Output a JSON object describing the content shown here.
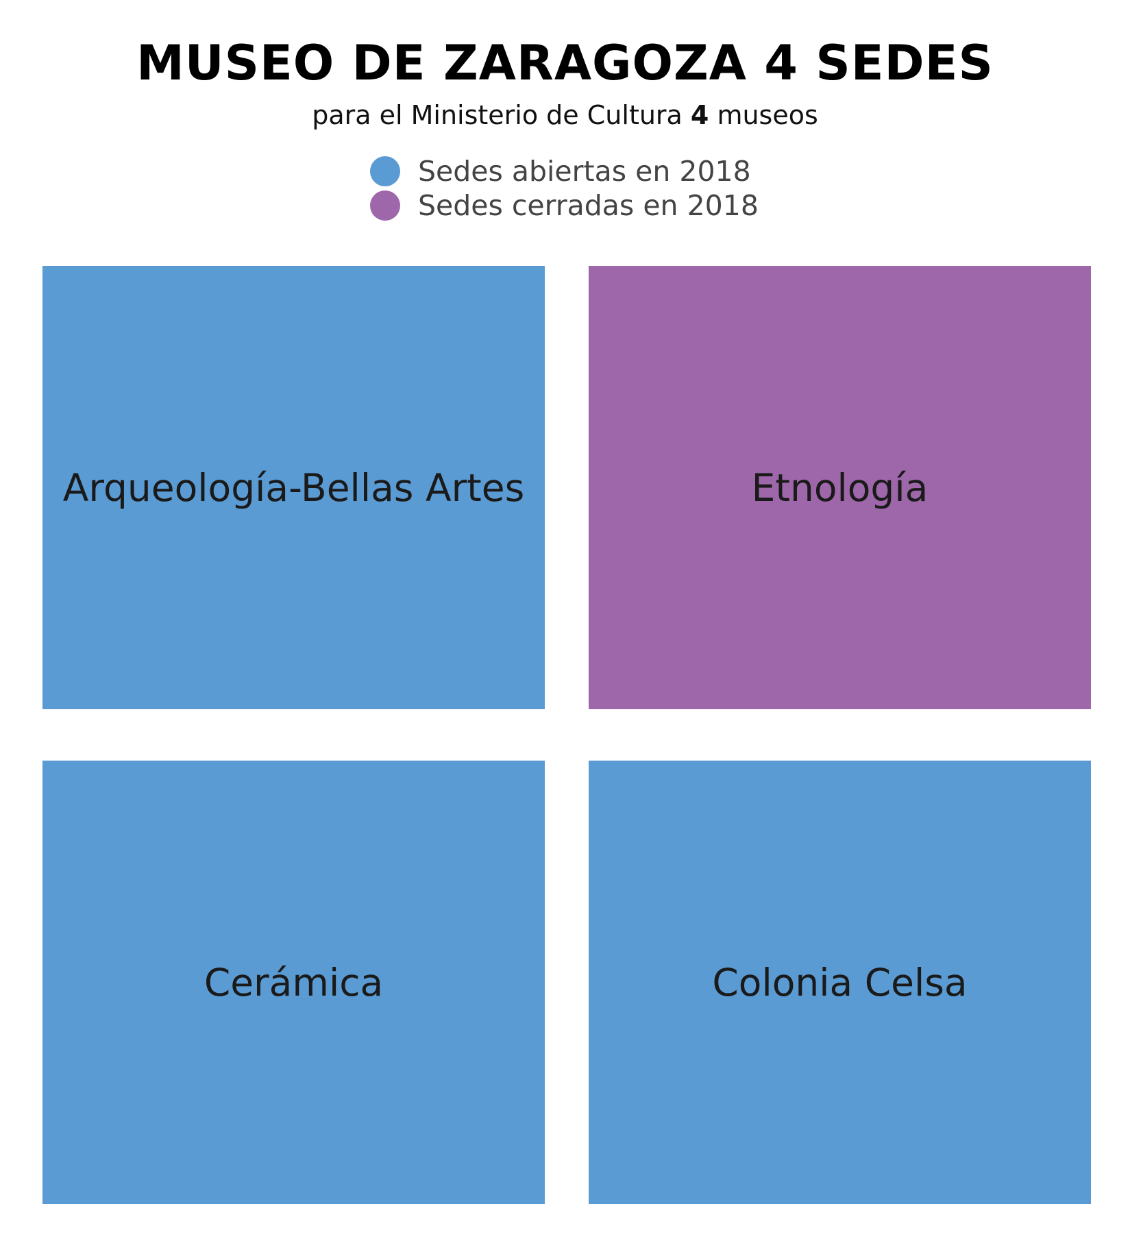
{
  "chart_data": {
    "type": "treemap",
    "title": "MUSEO DE ZARAGOZA 4 SEDES",
    "subtitle": {
      "prefix": "para el Ministerio de Cultura ",
      "number": "4",
      "suffix": " museos"
    },
    "legend": [
      {
        "label": "Sedes abiertas en 2018",
        "color": "#5b9bd3",
        "status": "open"
      },
      {
        "label": "Sedes cerradas en 2018",
        "color": "#9e67aa",
        "status": "closed"
      }
    ],
    "items": [
      {
        "label": "Arqueología-Bellas Artes",
        "status": "open"
      },
      {
        "label": "Etnología",
        "status": "closed"
      },
      {
        "label": "Cerámica",
        "status": "open"
      },
      {
        "label": "Colonia Celsa",
        "status": "open"
      }
    ],
    "colors": {
      "open": "#5b9bd3",
      "closed": "#9e67aa"
    }
  }
}
